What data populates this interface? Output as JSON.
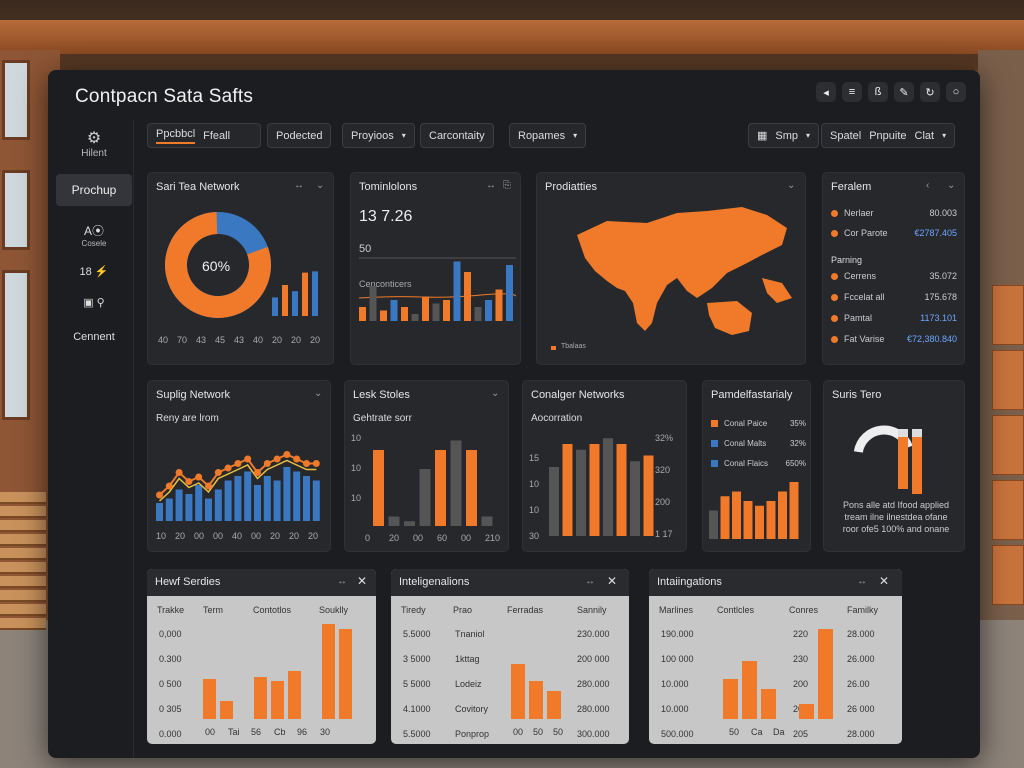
{
  "colors": {
    "accent": "#f07a2a",
    "blue": "#3a78c2",
    "gray": "#555",
    "yellow": "#e8c040"
  },
  "title": "Contpacn Sata Safts",
  "window_icons": [
    "back-icon",
    "menu-icon",
    "share-icon",
    "edit-icon",
    "refresh-icon",
    "circle-icon"
  ],
  "sidebar": {
    "items": [
      {
        "label": "Hilent",
        "icon": "network-icon"
      },
      {
        "label": "Prochup",
        "active": true
      },
      {
        "label": "Cosele",
        "icon": "ai-icon"
      },
      {
        "label": "",
        "icon": "grid-icon"
      },
      {
        "label": "",
        "icon": "search-icon"
      },
      {
        "label": "Cennent"
      }
    ]
  },
  "toolbar": {
    "tabs": [
      "Ppcbbcl",
      "Ffeall"
    ],
    "buttons": [
      "Podected",
      "Proyioos",
      "Carcontaity",
      "Ropames"
    ],
    "right": [
      "Smp",
      "Spatel",
      "Pnpuite",
      "Clat"
    ]
  },
  "p1": {
    "title": "Sari Tea Network",
    "center": "60%",
    "donut_fraction": 0.8,
    "ticks": [
      "40",
      "70",
      "43",
      "45",
      "43",
      "40",
      "20",
      "20",
      "20"
    ],
    "bars": [
      30,
      50,
      40,
      70,
      72
    ]
  },
  "p2": {
    "title": "Tominlolons",
    "value": "13 7.26",
    "sub": "50",
    "label": "Cenconticers",
    "bars": [
      {
        "v": 20,
        "c": "a"
      },
      {
        "v": 50,
        "c": "g"
      },
      {
        "v": 15,
        "c": "a"
      },
      {
        "v": 30,
        "c": "b"
      },
      {
        "v": 20,
        "c": "a"
      },
      {
        "v": 10,
        "c": "g"
      },
      {
        "v": 35,
        "c": "a"
      },
      {
        "v": 25,
        "c": "g"
      },
      {
        "v": 30,
        "c": "a"
      },
      {
        "v": 85,
        "c": "b"
      },
      {
        "v": 70,
        "c": "a"
      },
      {
        "v": 20,
        "c": "g"
      },
      {
        "v": 30,
        "c": "b"
      },
      {
        "v": 45,
        "c": "a"
      },
      {
        "v": 80,
        "c": "b"
      }
    ]
  },
  "p3": {
    "title": "Prodiatties",
    "legend": "Tbalaas"
  },
  "p4": {
    "title": "Feralem",
    "rows": [
      {
        "label": "Nerlaer",
        "value": "80.003"
      },
      {
        "label": "Cor Parote",
        "value": "€2787.405"
      }
    ],
    "section": "Parning",
    "rows2": [
      {
        "label": "Cerrens",
        "value": "35.072"
      },
      {
        "label": "Fccelat all",
        "value": "175.678"
      },
      {
        "label": "Pamtal",
        "value": "1173.101"
      },
      {
        "label": "Fat Varise",
        "value": "€72,380.840"
      }
    ]
  },
  "p5": {
    "title": "Suplig Network",
    "sub": "Reny are lrom",
    "ticks": [
      "10",
      "20",
      "00",
      "00",
      "40",
      "00",
      "20",
      "20",
      "20"
    ],
    "bars": [
      20,
      25,
      35,
      30,
      40,
      25,
      35,
      45,
      50,
      55,
      40,
      50,
      45,
      60,
      55,
      50,
      45
    ],
    "line": [
      20,
      30,
      45,
      35,
      40,
      30,
      45,
      50,
      55,
      60,
      45,
      55,
      60,
      65,
      60,
      55,
      55
    ]
  },
  "p6": {
    "title": "Lesk Stoles",
    "sub": "Gehtrate sorr",
    "yticks": [
      "10",
      "10",
      "10"
    ],
    "xticks": [
      "0",
      "20",
      "00",
      "60",
      "00",
      "210"
    ],
    "bars": [
      {
        "v": 80,
        "c": "a"
      },
      {
        "v": 10,
        "c": "g"
      },
      {
        "v": 5,
        "c": "g"
      },
      {
        "v": 60,
        "c": "g"
      },
      {
        "v": 80,
        "c": "a"
      },
      {
        "v": 90,
        "c": "g"
      },
      {
        "v": 80,
        "c": "a"
      },
      {
        "v": 10,
        "c": "g"
      }
    ]
  },
  "p7": {
    "title": "Conalger Networks",
    "sub": "Aocorration",
    "lticks": [
      "15",
      "10",
      "10",
      "30"
    ],
    "rticks": [
      "32%",
      "320",
      "200",
      "1 17"
    ],
    "bars": [
      {
        "v": 60,
        "c": "g"
      },
      {
        "v": 80,
        "c": "a"
      },
      {
        "v": 75,
        "c": "g"
      },
      {
        "v": 80,
        "c": "a"
      },
      {
        "v": 85,
        "c": "g"
      },
      {
        "v": 80,
        "c": "a"
      },
      {
        "v": 65,
        "c": "g"
      },
      {
        "v": 70,
        "c": "a"
      }
    ]
  },
  "p8": {
    "title": "Pamdelfastarialy",
    "legend": [
      {
        "label": "Conal Paice",
        "value": "35%",
        "c": "a"
      },
      {
        "label": "Conal Malts",
        "value": "32%",
        "c": "b"
      },
      {
        "label": "Conal Flaics",
        "value": "650%",
        "c": "b"
      }
    ],
    "bars": [
      30,
      45,
      50,
      40,
      35,
      40,
      50,
      60
    ]
  },
  "p9": {
    "title": "Suris Tero",
    "gauge": 0.7,
    "bars": [
      60,
      65
    ],
    "note": "Pons alle atd Ifood applied tream ilne ilnestdea ofane roor ofe5 100% and onane"
  },
  "p10": {
    "title": "Hewf Serdies",
    "cols": [
      "Trakke",
      "Term",
      "Contotlos",
      "Souklly"
    ],
    "rows": [
      "0,000",
      "0.300",
      "0 500",
      "0 305",
      "0.000"
    ],
    "xt": [
      "00",
      "Tai",
      "56",
      "Cb",
      "96",
      "30"
    ],
    "bars": [
      40,
      18,
      0,
      42,
      38,
      48,
      0,
      95,
      90
    ]
  },
  "p11": {
    "title": "Inteligenalions",
    "cols": [
      "Tiredy",
      "Prao",
      "Ferradas",
      "Sannily"
    ],
    "rows": [
      "5.5000",
      "3 5000",
      "5 5000",
      "4.1000",
      "5.5000"
    ],
    "right": [
      "230.000",
      "200 000",
      "280.000",
      "280.000",
      "300.000"
    ],
    "mid": [
      "Tnaniol",
      "1kttag",
      "Lodeiz",
      "Covitory",
      "Ponprop"
    ],
    "xt": [
      "00",
      "50",
      "50"
    ],
    "bars": [
      55,
      38,
      28
    ]
  },
  "p12": {
    "title": "Intaiingations",
    "cols": [
      "Marlines",
      "Contlcles",
      "Conres",
      "Familky"
    ],
    "rows": [
      "190.000",
      "100 000",
      "10.000",
      "10.000",
      "500.000"
    ],
    "mid": [
      "220",
      "230",
      "200",
      "200",
      "205"
    ],
    "right": [
      "28.000",
      "26.000",
      "26.00",
      "26 000",
      "28.000"
    ],
    "xt": [
      "50",
      "Ca",
      "Da"
    ],
    "bars": [
      40,
      58,
      30,
      0,
      15,
      90
    ]
  }
}
